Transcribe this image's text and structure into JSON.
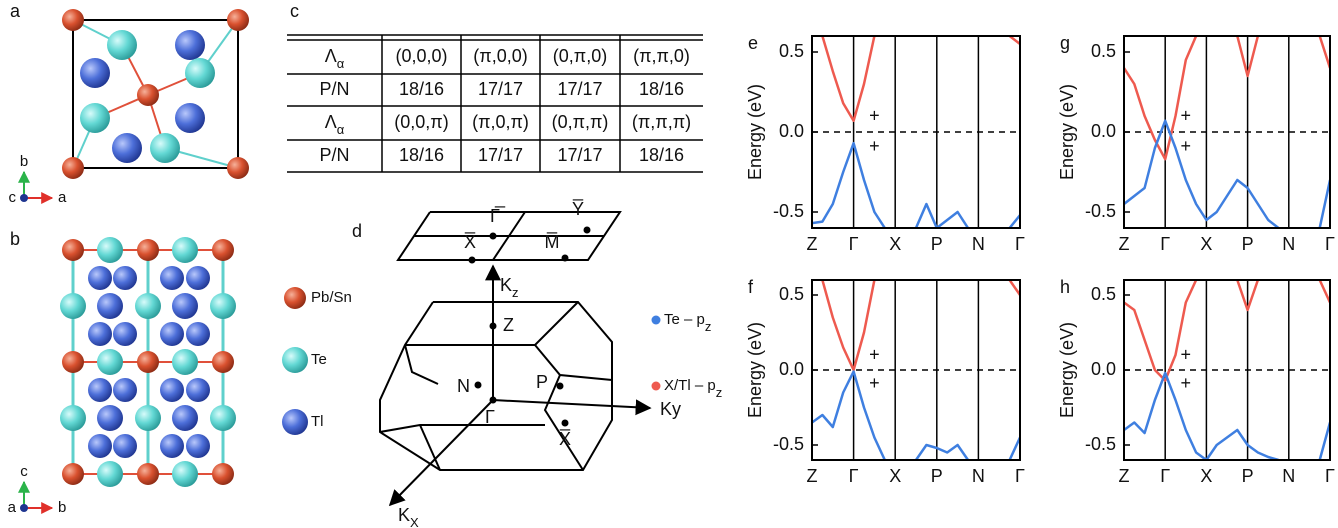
{
  "crystal": {
    "a": {
      "label": "a",
      "axes": {
        "up": "b",
        "out": "c",
        "right": "a"
      }
    },
    "b": {
      "label": "b",
      "axes": {
        "up": "c",
        "out": "a",
        "right": "b"
      }
    }
  },
  "atom_legend": [
    "Pb/Sn",
    "Te",
    "Tl"
  ],
  "table": {
    "label": "c",
    "rows": [
      [
        {
          "main": "Λ",
          "sub": "α"
        },
        "(0,0,0)",
        "(π,0,0)",
        "(0,π,0)",
        "(π,π,0)"
      ],
      [
        "P/N",
        "18/16",
        "17/17",
        "17/17",
        "18/16"
      ],
      [
        {
          "main": "Λ",
          "sub": "α"
        },
        "(0,0,π)",
        "(π,0,π)",
        "(0,π,π)",
        "(π,π,π)"
      ],
      [
        "P/N",
        "18/16",
        "17/17",
        "17/17",
        "18/16"
      ]
    ]
  },
  "brillouin_zone": {
    "label": "d",
    "surface_points": [
      "Γ̅",
      "Y̅",
      "X̅",
      "M̅"
    ],
    "kz": {
      "main": "K",
      "sub": "z"
    },
    "ky": "Ky",
    "kx": {
      "main": "K",
      "sub": "X"
    },
    "bulk_points": [
      "Z",
      "N",
      "P",
      "Γ",
      "X̅"
    ]
  },
  "orbital_legend": [
    {
      "main": "Te – p",
      "sub": "z",
      "color": "#3f7fe0"
    },
    {
      "main": "X/Tl – p",
      "sub": "z",
      "color": "#ee5a4f"
    }
  ],
  "chart_data": [
    {
      "type": "line",
      "title": "e",
      "ylabel": "Energy (eV)",
      "x": [
        0,
        0.25,
        0.5,
        0.75,
        1,
        1.25,
        1.5,
        1.75,
        2,
        2.25,
        2.5,
        2.75,
        3,
        3.25,
        3.5,
        3.75,
        4,
        4.25,
        4.5,
        4.75,
        5
      ],
      "xlim": [
        0,
        5
      ],
      "xticks": [
        {
          "value": 0,
          "label": "Z"
        },
        {
          "value": 1,
          "label": "Γ"
        },
        {
          "value": 2,
          "label": "X"
        },
        {
          "value": 3,
          "label": "P"
        },
        {
          "value": 4,
          "label": "N"
        },
        {
          "value": 5,
          "label": "Γ"
        }
      ],
      "ylim": [
        -0.6,
        0.6
      ],
      "yticks": [
        -0.5,
        {
          "value": 0,
          "label": "0.0"
        },
        0.5
      ],
      "fermi_level": 0,
      "vlines": true,
      "series": [
        {
          "color": "#ee5a4f",
          "values": [
            null,
            0.6,
            0.38,
            0.18,
            0.07,
            0.3,
            0.6,
            null,
            null,
            null,
            null,
            null,
            null,
            null,
            null,
            null,
            null,
            null,
            null,
            0.6,
            0.55
          ]
        },
        {
          "color": "#3f7fe0",
          "values": [
            -0.57,
            -0.56,
            -0.45,
            -0.25,
            -0.07,
            -0.3,
            -0.5,
            -0.6,
            null,
            null,
            -0.6,
            -0.45,
            -0.6,
            -0.55,
            -0.5,
            -0.6,
            null,
            null,
            null,
            -0.6,
            -0.52
          ]
        }
      ],
      "annotations": [
        {
          "text": "+",
          "color": "#ee5a4f"
        },
        {
          "text": "+",
          "color": "#3f7fe0"
        }
      ]
    },
    {
      "type": "line",
      "title": "g",
      "ylabel": "Energy (eV)",
      "x": [
        0,
        0.25,
        0.5,
        0.75,
        1,
        1.25,
        1.5,
        1.75,
        2,
        2.25,
        2.5,
        2.75,
        3,
        3.25,
        3.5,
        3.75,
        4,
        4.25,
        4.5,
        4.75,
        5
      ],
      "xlim": [
        0,
        5
      ],
      "xticks": [
        {
          "value": 0,
          "label": "Z"
        },
        {
          "value": 1,
          "label": "Γ"
        },
        {
          "value": 2,
          "label": "X"
        },
        {
          "value": 3,
          "label": "P"
        },
        {
          "value": 4,
          "label": "N"
        },
        {
          "value": 5,
          "label": "Γ"
        }
      ],
      "ylim": [
        -0.6,
        0.6
      ],
      "yticks": [
        -0.5,
        {
          "value": 0,
          "label": "0.0"
        },
        0.5
      ],
      "fermi_level": 0,
      "vlines": true,
      "series": [
        {
          "color": "#ee5a4f",
          "values": [
            0.4,
            0.3,
            0.1,
            -0.05,
            -0.17,
            0.1,
            0.45,
            0.6,
            null,
            null,
            null,
            0.6,
            0.35,
            0.6,
            null,
            null,
            null,
            null,
            null,
            0.6,
            0.4
          ]
        },
        {
          "color": "#3f7fe0",
          "values": [
            -0.45,
            -0.4,
            -0.35,
            -0.1,
            0.07,
            -0.1,
            -0.3,
            -0.45,
            -0.55,
            -0.5,
            -0.4,
            -0.3,
            -0.35,
            -0.45,
            -0.55,
            -0.6,
            null,
            null,
            null,
            -0.6,
            -0.3
          ]
        }
      ],
      "annotations": [
        {
          "text": "+",
          "color": "#3f7fe0"
        },
        {
          "text": "+",
          "color": "#ee5a4f"
        }
      ]
    },
    {
      "type": "line",
      "title": "f",
      "ylabel": "Energy (eV)",
      "x": [
        0,
        0.25,
        0.5,
        0.75,
        1,
        1.25,
        1.5,
        1.75,
        2,
        2.25,
        2.5,
        2.75,
        3,
        3.25,
        3.5,
        3.75,
        4,
        4.25,
        4.5,
        4.75,
        5
      ],
      "xlim": [
        0,
        5
      ],
      "xticks": [
        {
          "value": 0,
          "label": "Z"
        },
        {
          "value": 1,
          "label": "Γ"
        },
        {
          "value": 2,
          "label": "X"
        },
        {
          "value": 3,
          "label": "P"
        },
        {
          "value": 4,
          "label": "N"
        },
        {
          "value": 5,
          "label": "Γ"
        }
      ],
      "ylim": [
        -0.6,
        0.6
      ],
      "yticks": [
        -0.5,
        {
          "value": 0,
          "label": "0.0"
        },
        0.5
      ],
      "fermi_level": 0,
      "vlines": true,
      "series": [
        {
          "color": "#ee5a4f",
          "values": [
            null,
            0.6,
            0.35,
            0.15,
            0.0,
            0.25,
            0.6,
            null,
            null,
            null,
            null,
            null,
            null,
            null,
            null,
            null,
            null,
            null,
            null,
            0.6,
            0.5
          ]
        },
        {
          "color": "#3f7fe0",
          "values": [
            -0.35,
            -0.3,
            -0.38,
            -0.15,
            -0.01,
            -0.25,
            -0.45,
            -0.6,
            null,
            null,
            -0.6,
            -0.5,
            -0.52,
            -0.55,
            -0.5,
            -0.6,
            null,
            null,
            null,
            -0.6,
            -0.45
          ]
        }
      ],
      "annotations": [
        {
          "text": "+",
          "color": "#ee5a4f"
        },
        {
          "text": "+",
          "color": "#3f7fe0"
        }
      ]
    },
    {
      "type": "line",
      "title": "h",
      "ylabel": "Energy (eV)",
      "x": [
        0,
        0.25,
        0.5,
        0.75,
        1,
        1.25,
        1.5,
        1.75,
        2,
        2.25,
        2.5,
        2.75,
        3,
        3.25,
        3.5,
        3.75,
        4,
        4.25,
        4.5,
        4.75,
        5
      ],
      "xlim": [
        0,
        5
      ],
      "xticks": [
        {
          "value": 0,
          "label": "Z"
        },
        {
          "value": 1,
          "label": "Γ"
        },
        {
          "value": 2,
          "label": "X"
        },
        {
          "value": 3,
          "label": "P"
        },
        {
          "value": 4,
          "label": "N"
        },
        {
          "value": 5,
          "label": "Γ"
        }
      ],
      "ylim": [
        -0.6,
        0.6
      ],
      "yticks": [
        -0.5,
        {
          "value": 0,
          "label": "0.0"
        },
        0.5
      ],
      "fermi_level": 0,
      "vlines": true,
      "series": [
        {
          "color": "#ee5a4f",
          "values": [
            0.45,
            0.4,
            0.2,
            0.0,
            -0.07,
            0.1,
            0.45,
            0.6,
            null,
            null,
            null,
            0.6,
            0.4,
            0.6,
            null,
            null,
            null,
            null,
            null,
            0.6,
            0.45
          ]
        },
        {
          "color": "#3f7fe0",
          "values": [
            -0.4,
            -0.35,
            -0.42,
            -0.2,
            -0.02,
            -0.2,
            -0.4,
            -0.55,
            -0.6,
            -0.5,
            -0.45,
            -0.4,
            -0.5,
            -0.55,
            -0.58,
            -0.6,
            null,
            null,
            null,
            -0.6,
            -0.35
          ]
        }
      ],
      "annotations": [
        {
          "text": "+",
          "color": "#3f7fe0"
        },
        {
          "text": "+",
          "color": "#ee5a4f"
        }
      ]
    }
  ]
}
